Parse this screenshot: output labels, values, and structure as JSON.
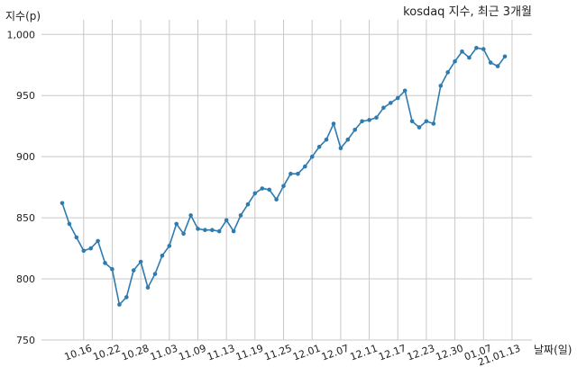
{
  "chart_data": {
    "type": "line",
    "title": "kosdaq 지수, 최근 3개월",
    "ylabel": "지수(p)",
    "xlabel": "날짜(일)",
    "ylim": [
      750,
      1012
    ],
    "yticks": [
      750,
      800,
      850,
      900,
      950,
      1000
    ],
    "ytick_labels": [
      "750",
      "800",
      "850",
      "900",
      "950",
      "1,000"
    ],
    "xtick_labels": [
      "10.16",
      "10.22",
      "10.28",
      "11.03",
      "11.09",
      "11.13",
      "11.19",
      "11.25",
      "12.01",
      "12.07",
      "12.11",
      "12.17",
      "12.23",
      "12.30",
      "01.07",
      "21.01.13"
    ],
    "xtick_positions": [
      3,
      7,
      11,
      15,
      19,
      23,
      27,
      31,
      35,
      39,
      43,
      47,
      51,
      55,
      59,
      63
    ],
    "grid": true,
    "colors": {
      "line": "#2e7bb0",
      "grid": "#c8c8c8"
    },
    "values": [
      862,
      845,
      834,
      823,
      825,
      831,
      813,
      808,
      779,
      785,
      807,
      814,
      793,
      804,
      819,
      827,
      845,
      837,
      852,
      841,
      840,
      840,
      839,
      848,
      839,
      852,
      861,
      870,
      874,
      873,
      865,
      876,
      886,
      886,
      892,
      900,
      908,
      914,
      927,
      907,
      914,
      922,
      929,
      930,
      932,
      940,
      944,
      948,
      954,
      929,
      924,
      929,
      927,
      958,
      969,
      978,
      986,
      981,
      989,
      988,
      977,
      974,
      982
    ]
  }
}
